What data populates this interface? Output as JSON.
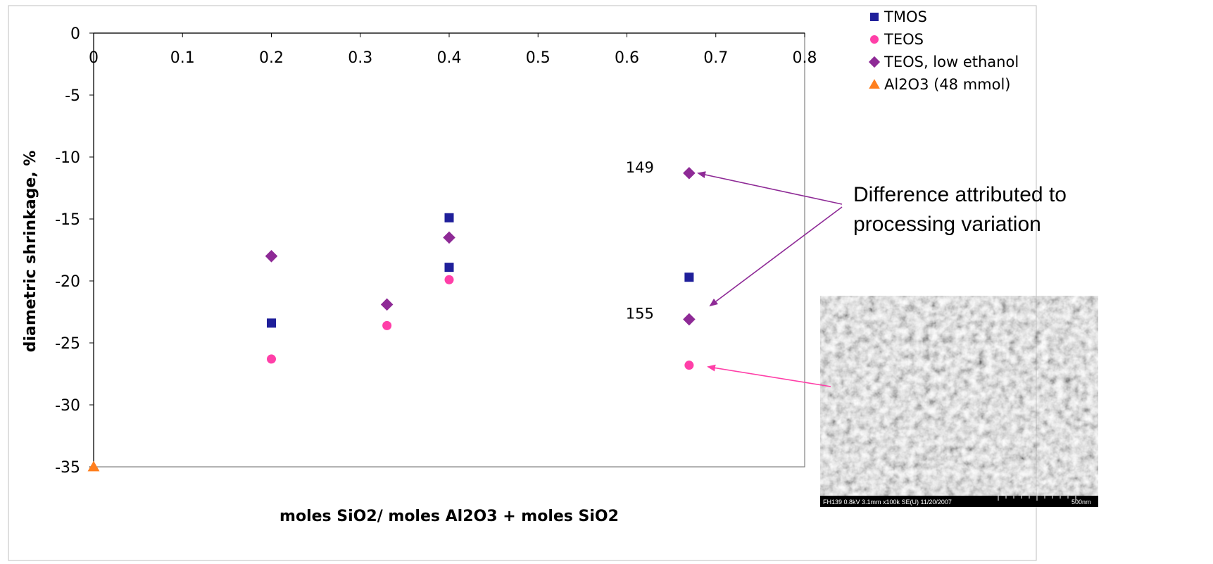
{
  "chart_data": {
    "type": "scatter",
    "title": "",
    "xlabel": "moles SiO2/ moles Al2O3 + moles SiO2",
    "ylabel": "diametric shrinkage, %",
    "xlim": [
      0,
      0.8
    ],
    "ylim": [
      -35,
      0
    ],
    "x_ticks": [
      "0",
      "0.1",
      "0.2",
      "0.3",
      "0.4",
      "0.5",
      "0.6",
      "0.7",
      "0.8"
    ],
    "y_ticks": [
      "0",
      "-5",
      "-10",
      "-15",
      "-20",
      "-25",
      "-30",
      "-35"
    ],
    "x_tick_position": "top",
    "grid": false,
    "legend_position": "top-right",
    "series": [
      {
        "name": "TMOS",
        "marker": "square",
        "color": "#1f1f9a",
        "points": [
          [
            0.2,
            -23.4
          ],
          [
            0.4,
            -14.9
          ],
          [
            0.4,
            -18.9
          ],
          [
            0.67,
            -19.7
          ]
        ]
      },
      {
        "name": "TEOS",
        "marker": "circle",
        "color": "#ff3fa8",
        "points": [
          [
            0.2,
            -26.3
          ],
          [
            0.33,
            -23.6
          ],
          [
            0.4,
            -19.9
          ],
          [
            0.67,
            -26.8
          ]
        ]
      },
      {
        "name": "TEOS, low ethanol",
        "marker": "diamond",
        "color": "#8e2a96",
        "points": [
          [
            0.2,
            -18.0
          ],
          [
            0.33,
            -21.9
          ],
          [
            0.4,
            -16.5
          ],
          [
            0.67,
            -11.3
          ],
          [
            0.67,
            -23.1
          ]
        ]
      },
      {
        "name": "Al2O3 (48 mmol)",
        "marker": "triangle",
        "color": "#ff7f1e",
        "points": [
          [
            0,
            -35.0
          ]
        ]
      }
    ],
    "annotations": [
      {
        "text": "149",
        "x": 0.67,
        "y": -11.3
      },
      {
        "text": "155",
        "x": 0.67,
        "y": -23.1
      }
    ]
  },
  "callout": {
    "line1": "Difference attributed to",
    "line2": "processing variation"
  },
  "sem_image": {
    "caption": "FH139 0.8kV 3.1mm x100k SE(U) 11/20/2007",
    "scale_label": "500nm"
  },
  "colors": {
    "arrow_purple": "#8e2a96",
    "arrow_pink": "#ff3fa8"
  }
}
